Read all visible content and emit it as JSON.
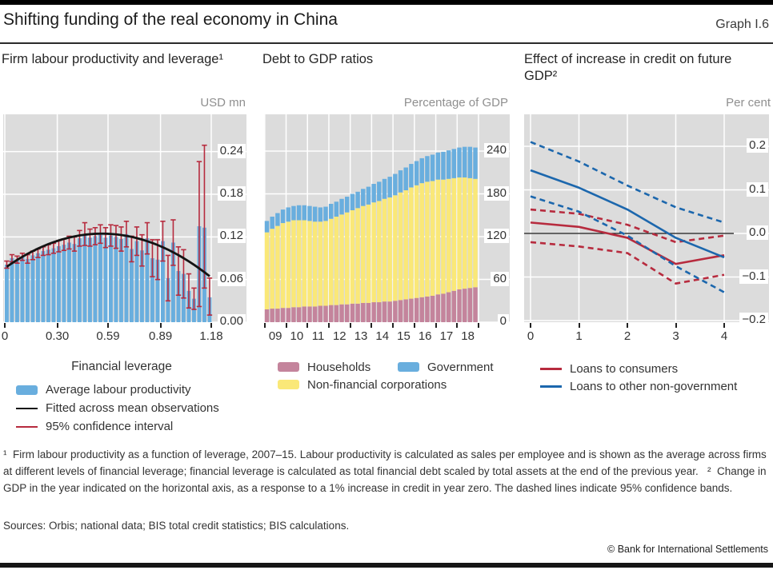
{
  "header": {
    "title": "Shifting funding of the real economy in China",
    "graph_label": "Graph I.6"
  },
  "colors": {
    "plot_bg": "#dcdcdc",
    "bar_blue": "#69aede",
    "pink": "#c4849c",
    "yellow": "#fae878",
    "blue": "#69aede",
    "red": "#b72b3e",
    "blue_line": "#1c67ad",
    "fitted_black": "#141414"
  },
  "chart_data": [
    {
      "type": "bar",
      "title": "Firm labour productivity and leverage¹",
      "unit": "USD mn",
      "xlabel": "Financial leverage",
      "x_start": 0,
      "x_step": 0.03,
      "values": [
        0.081,
        0.09,
        0.088,
        0.092,
        0.089,
        0.094,
        0.097,
        0.1,
        0.102,
        0.104,
        0.107,
        0.109,
        0.112,
        0.11,
        0.118,
        0.124,
        0.119,
        0.121,
        0.124,
        0.119,
        0.122,
        0.12,
        0.117,
        0.124,
        0.103,
        0.114,
        0.101,
        0.118,
        0.09,
        0.088,
        0.114,
        0.062,
        0.112,
        0.072,
        0.068,
        0.044,
        0.033,
        0.135,
        0.133,
        0.035
      ],
      "ci_low": [
        0.076,
        0.085,
        0.083,
        0.087,
        0.083,
        0.088,
        0.091,
        0.094,
        0.095,
        0.097,
        0.099,
        0.101,
        0.103,
        0.1,
        0.107,
        0.108,
        0.107,
        0.109,
        0.111,
        0.105,
        0.107,
        0.104,
        0.1,
        0.106,
        0.085,
        0.094,
        0.079,
        0.096,
        0.064,
        0.06,
        0.086,
        0.03,
        0.08,
        0.038,
        0.034,
        0.02,
        0.018,
        0.022,
        0.048,
        0.01
      ],
      "ci_high": [
        0.086,
        0.095,
        0.093,
        0.097,
        0.095,
        0.1,
        0.103,
        0.106,
        0.109,
        0.111,
        0.115,
        0.117,
        0.121,
        0.12,
        0.129,
        0.14,
        0.131,
        0.133,
        0.137,
        0.133,
        0.137,
        0.136,
        0.134,
        0.142,
        0.121,
        0.134,
        0.123,
        0.14,
        0.116,
        0.116,
        0.142,
        0.094,
        0.144,
        0.106,
        0.102,
        0.068,
        0.048,
        0.226,
        0.249,
        0.062
      ],
      "fit": {
        "a": 0.078,
        "b": 0.17,
        "c": -0.155
      },
      "xticks": [
        {
          "v": 0,
          "label": "0"
        },
        {
          "v": 0.3,
          "label": "0.30"
        },
        {
          "v": 0.59,
          "label": "0.59"
        },
        {
          "v": 0.89,
          "label": "0.89"
        },
        {
          "v": 1.18,
          "label": "1.18"
        }
      ],
      "yticks": [
        {
          "v": 0,
          "label": "0.00"
        },
        {
          "v": 0.06,
          "label": "0.06"
        },
        {
          "v": 0.12,
          "label": "0.12"
        },
        {
          "v": 0.18,
          "label": "0.18"
        },
        {
          "v": 0.24,
          "label": "0.24"
        }
      ],
      "xmax": 1.18,
      "ylim": [
        0,
        0.29
      ],
      "legend": [
        "Average labour productivity",
        "Fitted across mean observations",
        "95% confidence interval"
      ]
    },
    {
      "type": "stacked-bar",
      "title": "Debt to GDP ratios",
      "unit": "Percentage of GDP",
      "x_labels": [
        "09",
        "10",
        "11",
        "12",
        "13",
        "14",
        "15",
        "16",
        "17",
        "18"
      ],
      "bars_per_label": 4,
      "series": [
        {
          "name": "Households",
          "color_key": "pink",
          "values": [
            18,
            19,
            19,
            20,
            20,
            21,
            21,
            22,
            22,
            22,
            23,
            23,
            24,
            24,
            25,
            25,
            26,
            26,
            27,
            27,
            28,
            28,
            29,
            29,
            30,
            31,
            32,
            33,
            34,
            35,
            36,
            37,
            39,
            40,
            42,
            44,
            46,
            47,
            48,
            49
          ]
        },
        {
          "name": "Non-financial corporations",
          "color_key": "yellow",
          "values": [
            108,
            112,
            116,
            119,
            121,
            122,
            122,
            121,
            120,
            119,
            118,
            119,
            121,
            124,
            126,
            129,
            131,
            134,
            136,
            138,
            140,
            142,
            144,
            146,
            148,
            151,
            153,
            156,
            158,
            160,
            161,
            161,
            161,
            160,
            159,
            158,
            157,
            156,
            154,
            152
          ]
        },
        {
          "name": "Government",
          "color_key": "blue",
          "values": [
            16,
            17,
            18,
            19,
            20,
            20,
            21,
            21,
            21,
            21,
            20,
            20,
            21,
            21,
            22,
            22,
            23,
            23,
            24,
            25,
            26,
            27,
            28,
            29,
            30,
            31,
            32,
            33,
            34,
            35,
            36,
            37,
            38,
            39,
            40,
            41,
            42,
            43,
            44,
            44
          ]
        }
      ],
      "yticks": [
        0,
        60,
        120,
        180,
        240
      ],
      "ylim": [
        0,
        291
      ]
    },
    {
      "type": "line",
      "title": "Effect of increase in credit on future GDP²",
      "unit": "Per cent",
      "x": [
        0,
        1,
        2,
        3,
        4
      ],
      "series": [
        {
          "name": "Loans to consumers",
          "style": "solid",
          "color_key": "red",
          "values": [
            0.025,
            0.015,
            -0.01,
            -0.07,
            -0.05
          ]
        },
        {
          "name": "consumers-upper-band",
          "style": "dashed",
          "color_key": "red",
          "values": [
            0.055,
            0.045,
            0.02,
            -0.02,
            -0.005
          ]
        },
        {
          "name": "consumers-lower-band",
          "style": "dashed",
          "color_key": "red",
          "values": [
            -0.02,
            -0.03,
            -0.045,
            -0.115,
            -0.095
          ]
        },
        {
          "name": "Loans to other non-government",
          "style": "solid",
          "color_key": "blue_line",
          "values": [
            0.145,
            0.105,
            0.055,
            -0.01,
            -0.055
          ]
        },
        {
          "name": "other-upper-band",
          "style": "dashed",
          "color_key": "blue_line",
          "values": [
            0.21,
            0.165,
            0.11,
            0.06,
            0.025
          ]
        },
        {
          "name": "other-lower-band",
          "style": "dashed",
          "color_key": "blue_line",
          "values": [
            0.085,
            0.05,
            -0.005,
            -0.075,
            -0.135
          ]
        }
      ],
      "yticks": [
        -0.2,
        -0.1,
        0,
        0.1,
        0.2
      ],
      "xticks": [
        0,
        1,
        2,
        3,
        4
      ],
      "ylim": [
        -0.21,
        0.273
      ]
    }
  ],
  "footnote": {
    "text": "¹  Firm labour productivity as a function of leverage, 2007–15. Labour productivity is calculated as sales per employee and is shown as the average across firms at different levels of financial leverage; financial leverage is calculated as total financial debt scaled by total assets at the end of the previous year.   ²  Change in GDP in the year indicated on the horizontal axis, as a response to a 1% increase in credit in year zero. The dashed lines indicate 95% confidence bands."
  },
  "sources": "Sources: Orbis; national data; BIS total credit statistics; BIS calculations.",
  "copyright": "© Bank for International Settlements"
}
